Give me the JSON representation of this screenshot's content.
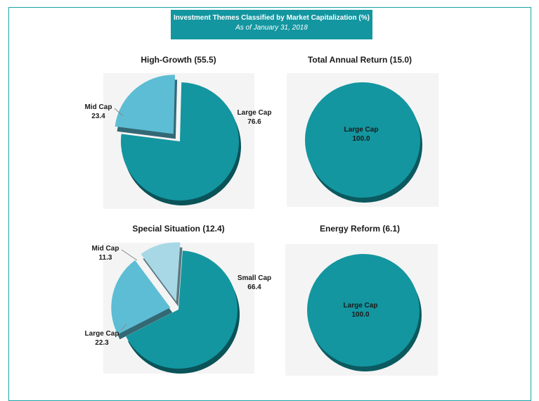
{
  "header": {
    "title": "Investment Themes Classified by Market Capitalization (%)",
    "subtitle": "As of January 31, 2018"
  },
  "colors": {
    "large_cap": "#1396a0",
    "mid_cap": "#5dbdd4",
    "small_cap": "#1396a0",
    "mid_cap_light": "#a8d8e6",
    "frame": "#19a3a6"
  },
  "chart_data": [
    {
      "type": "pie",
      "title": "High-Growth (55.5)",
      "slices": [
        {
          "name": "Large Cap",
          "value": 76.6,
          "value_label": "76.6"
        },
        {
          "name": "Mid Cap",
          "value": 23.4,
          "value_label": "23.4"
        }
      ]
    },
    {
      "type": "pie",
      "title": "Total Annual Return (15.0)",
      "slices": [
        {
          "name": "Large Cap",
          "value": 100.0,
          "value_label": "100.0"
        }
      ]
    },
    {
      "type": "pie",
      "title": "Special Situation (12.4)",
      "slices": [
        {
          "name": "Small Cap",
          "value": 66.4,
          "value_label": "66.4"
        },
        {
          "name": "Large Cap",
          "value": 22.3,
          "value_label": "22.3"
        },
        {
          "name": "Mid Cap",
          "value": 11.3,
          "value_label": "11.3"
        }
      ]
    },
    {
      "type": "pie",
      "title": "Energy Reform (6.1)",
      "slices": [
        {
          "name": "Large Cap",
          "value": 100.0,
          "value_label": "100.0"
        }
      ]
    }
  ]
}
